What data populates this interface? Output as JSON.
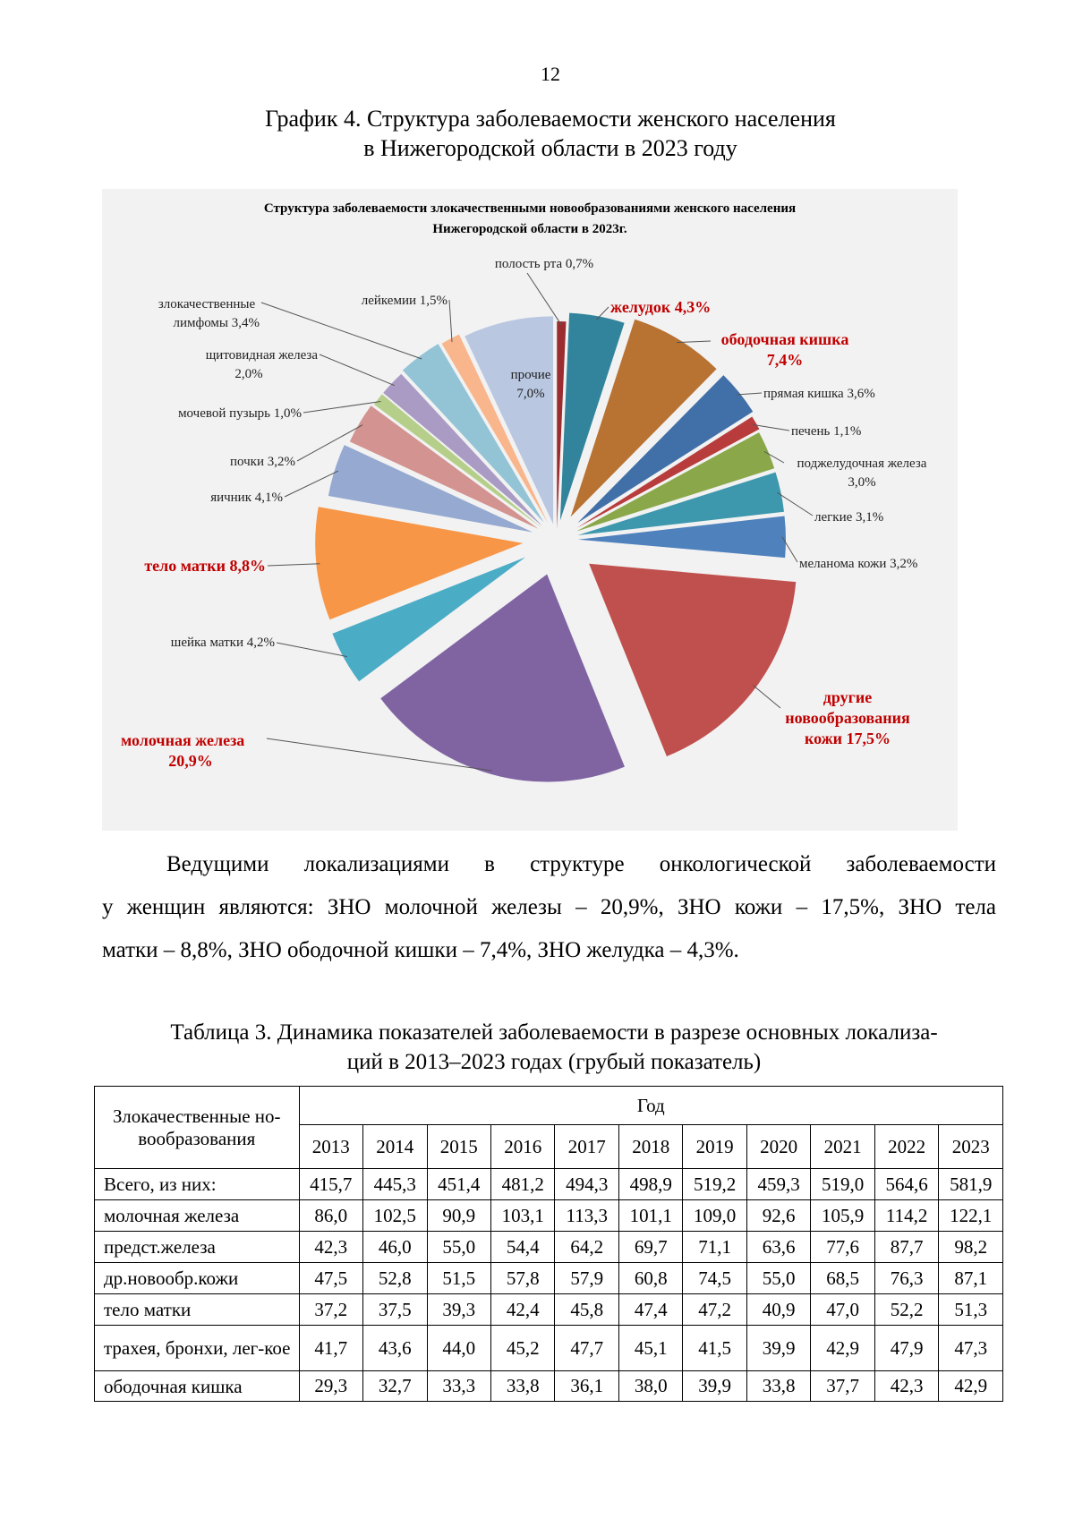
{
  "page_number": "12",
  "heading": {
    "line1": "График 4. Структура заболеваемости женского населения",
    "line2": "в Нижегородской области в 2023 году"
  },
  "chart_data": {
    "type": "pie",
    "title_lines": [
      "Структура заболеваемости злокачественными новообразованиями женского населения",
      "Нижегородской области в 2023г."
    ],
    "unit": "%",
    "highlight_color": "#c00000",
    "slices": [
      {
        "label_lines": [
          "полость рта  0,7%"
        ],
        "value": 0.7,
        "color": "#9b2d30",
        "highlight": false
      },
      {
        "label_lines": [
          "желудок 4,3%"
        ],
        "value": 4.3,
        "color": "#31849b",
        "highlight": true
      },
      {
        "label_lines": [
          "ободочная кишка",
          "7,4%"
        ],
        "value": 7.4,
        "color": "#b87232",
        "highlight": true
      },
      {
        "label_lines": [
          "прямая кишка 3,6%"
        ],
        "value": 3.6,
        "color": "#4170a8",
        "highlight": false
      },
      {
        "label_lines": [
          "печень 1,1%"
        ],
        "value": 1.1,
        "color": "#b83c3c",
        "highlight": false
      },
      {
        "label_lines": [
          "поджелудочная железа",
          "3,0%"
        ],
        "value": 3.0,
        "color": "#8aa84a",
        "highlight": false
      },
      {
        "label_lines": [
          "легкие 3,1%"
        ],
        "value": 3.1,
        "color": "#3d97ad",
        "highlight": false
      },
      {
        "label_lines": [
          "меланома кожи 3,2%"
        ],
        "value": 3.2,
        "color": "#4f81bd",
        "highlight": false
      },
      {
        "label_lines": [
          "другие",
          "новообразования",
          "кожи 17,5%"
        ],
        "value": 17.5,
        "color": "#c0504d",
        "highlight": true
      },
      {
        "label_lines": [
          "молочная железа",
          "20,9%"
        ],
        "value": 20.9,
        "color": "#8064a2",
        "highlight": true
      },
      {
        "label_lines": [
          "шейка матки 4,2%"
        ],
        "value": 4.2,
        "color": "#4bacc6",
        "highlight": false
      },
      {
        "label_lines": [
          "тело матки 8,8%"
        ],
        "value": 8.8,
        "color": "#f79646",
        "highlight": true
      },
      {
        "label_lines": [
          "яичник 4,1%"
        ],
        "value": 4.1,
        "color": "#95a9d1",
        "highlight": false
      },
      {
        "label_lines": [
          "почки 3,2%"
        ],
        "value": 3.2,
        "color": "#d39390",
        "highlight": false
      },
      {
        "label_lines": [
          "мочевой пузырь 1,0%"
        ],
        "value": 1.0,
        "color": "#b5cf8a",
        "highlight": false
      },
      {
        "label_lines": [
          "щитовидная железа",
          "2,0%"
        ],
        "value": 2.0,
        "color": "#a99bc3",
        "highlight": false
      },
      {
        "label_lines": [
          "злокачественные",
          "лимфомы 3,4%"
        ],
        "value": 3.4,
        "color": "#93c4d6",
        "highlight": false
      },
      {
        "label_lines": [
          "лейкемии 1,5%"
        ],
        "value": 1.5,
        "color": "#f9b58b",
        "highlight": false
      },
      {
        "label_lines": [
          "прочие",
          "7,0%"
        ],
        "value": 7.0,
        "color": "#b9c7e1",
        "highlight": false
      }
    ]
  },
  "paragraph": {
    "line1": "Ведущими локализациями в структуре онкологической заболеваемости",
    "line2": "у женщин являются: ЗНО молочной железы – 20,9%, ЗНО кожи – 17,5%, ЗНО тела",
    "line3": "матки – 8,8%, ЗНО ободочной кишки – 7,4%, ЗНО желудка – 4,3%."
  },
  "table": {
    "caption_line1": "Таблица 3. Динамика показателей заболеваемости в разрезе основных локализа-",
    "caption_line2": "ций в 2013–2023 годах (грубый показатель)",
    "row_header": "Злокачественные но-вообразования",
    "year_header": "Год",
    "years": [
      "2013",
      "2014",
      "2015",
      "2016",
      "2017",
      "2018",
      "2019",
      "2020",
      "2021",
      "2022",
      "2023"
    ],
    "rows": [
      {
        "name": "Всего, из них:",
        "values": [
          "415,7",
          "445,3",
          "451,4",
          "481,2",
          "494,3",
          "498,9",
          "519,2",
          "459,3",
          "519,0",
          "564,6",
          "581,9"
        ]
      },
      {
        "name": "молочная железа",
        "values": [
          "86,0",
          "102,5",
          "90,9",
          "103,1",
          "113,3",
          "101,1",
          "109,0",
          "92,6",
          "105,9",
          "114,2",
          "122,1"
        ]
      },
      {
        "name": "предст.железа",
        "values": [
          "42,3",
          "46,0",
          "55,0",
          "54,4",
          "64,2",
          "69,7",
          "71,1",
          "63,6",
          "77,6",
          "87,7",
          "98,2"
        ]
      },
      {
        "name": "др.новообр.кожи",
        "values": [
          "47,5",
          "52,8",
          "51,5",
          "57,8",
          "57,9",
          "60,8",
          "74,5",
          "55,0",
          "68,5",
          "76,3",
          "87,1"
        ]
      },
      {
        "name": "тело матки",
        "values": [
          "37,2",
          "37,5",
          "39,3",
          "42,4",
          "45,8",
          "47,4",
          "47,2",
          "40,9",
          "47,0",
          "52,2",
          "51,3"
        ]
      },
      {
        "name": "трахея, бронхи, лег-кое",
        "values": [
          "41,7",
          "43,6",
          "44,0",
          "45,2",
          "47,7",
          "45,1",
          "41,5",
          "39,9",
          "42,9",
          "47,9",
          "47,3"
        ]
      },
      {
        "name": "ободочная кишка",
        "values": [
          "29,3",
          "32,7",
          "33,3",
          "33,8",
          "36,1",
          "38,0",
          "39,9",
          "33,8",
          "37,7",
          "42,3",
          "42,9"
        ]
      }
    ]
  }
}
